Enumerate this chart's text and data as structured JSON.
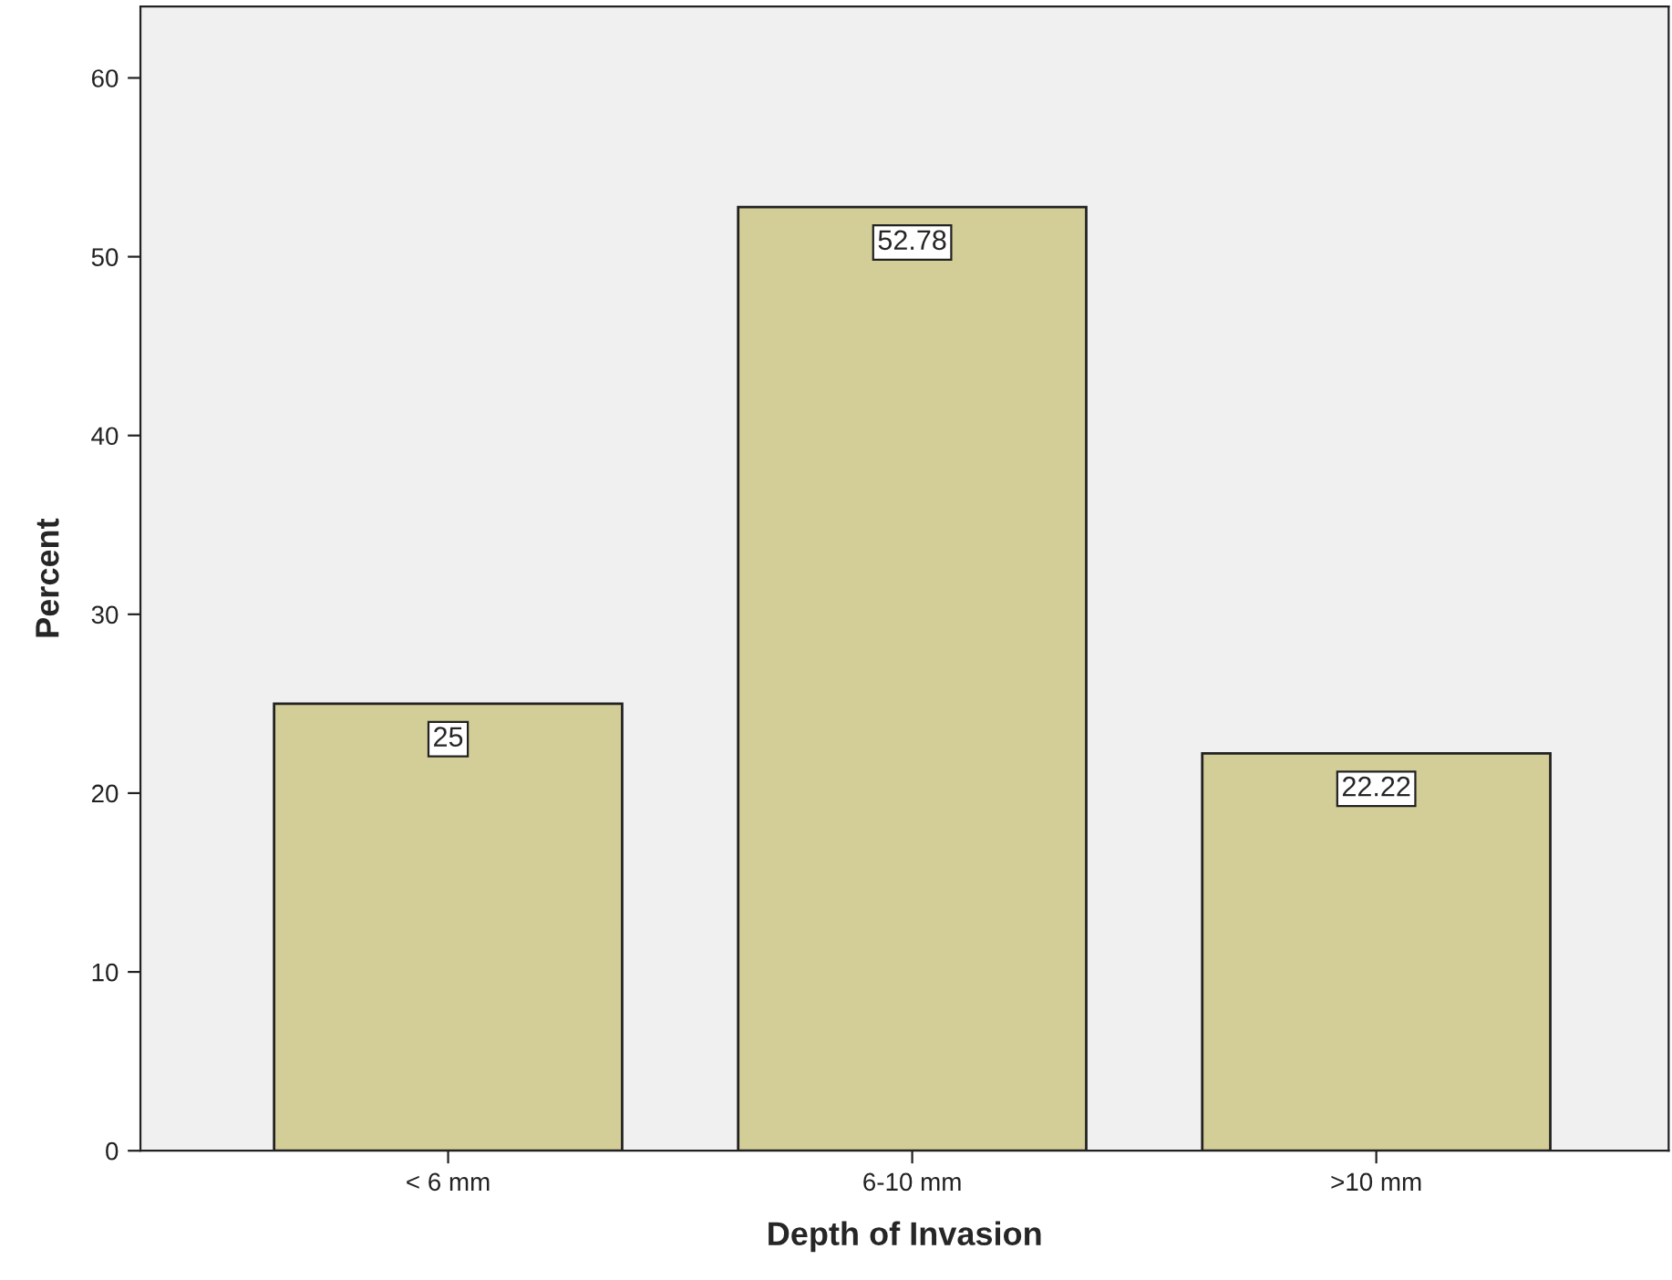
{
  "chart_data": {
    "type": "bar",
    "xlabel": "Depth of Invasion",
    "ylabel": "Percent",
    "categories": [
      "< 6 mm",
      "6-10 mm",
      ">10 mm"
    ],
    "values": [
      25,
      52.78,
      22.22
    ],
    "color": "#d3ce97",
    "ylim": [
      0,
      64
    ],
    "yticks": [
      0,
      10,
      20,
      30,
      40,
      50,
      60
    ],
    "grid": false,
    "data_labels": true
  }
}
